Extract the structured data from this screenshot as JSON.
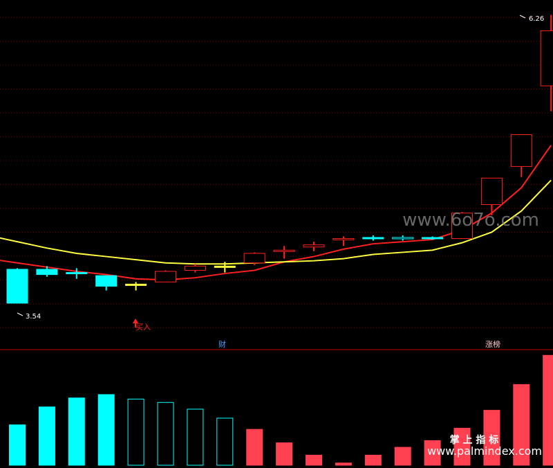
{
  "chart_data": [
    {
      "type": "candlestick",
      "price_range": [
        3.2,
        6.4
      ],
      "high_label": "6.26",
      "low_label": "3.54",
      "buy_label": "买入",
      "candles": [
        {
          "open": 3.86,
          "high": 3.87,
          "low": 3.54,
          "close": 3.54
        },
        {
          "open": 3.86,
          "high": 3.89,
          "low": 3.79,
          "close": 3.81
        },
        {
          "open": 3.83,
          "high": 3.87,
          "low": 3.77,
          "close": 3.82
        },
        {
          "open": 3.8,
          "high": 3.8,
          "low": 3.66,
          "close": 3.7
        },
        {
          "open": 3.72,
          "high": 3.74,
          "low": 3.66,
          "close": 3.72
        },
        {
          "open": 3.74,
          "high": 3.85,
          "low": 3.74,
          "close": 3.84
        },
        {
          "open": 3.85,
          "high": 3.91,
          "low": 3.83,
          "close": 3.89
        },
        {
          "open": 3.89,
          "high": 3.93,
          "low": 3.83,
          "close": 3.89
        },
        {
          "open": 3.92,
          "high": 4.02,
          "low": 3.9,
          "close": 4.01
        },
        {
          "open": 4.03,
          "high": 4.08,
          "low": 3.96,
          "close": 4.04
        },
        {
          "open": 4.07,
          "high": 4.12,
          "low": 4.03,
          "close": 4.09
        },
        {
          "open": 4.14,
          "high": 4.17,
          "low": 4.08,
          "close": 4.15
        },
        {
          "open": 4.16,
          "high": 4.18,
          "low": 4.13,
          "close": 4.16
        },
        {
          "open": 4.15,
          "high": 4.18,
          "low": 4.13,
          "close": 4.16
        },
        {
          "open": 4.16,
          "high": 4.17,
          "low": 4.14,
          "close": 4.16
        },
        {
          "open": 4.15,
          "high": 4.4,
          "low": 4.15,
          "close": 4.39
        },
        {
          "open": 4.47,
          "high": 4.72,
          "low": 4.37,
          "close": 4.72
        },
        {
          "open": 4.83,
          "high": 5.13,
          "low": 4.73,
          "close": 5.13
        },
        {
          "open": 5.59,
          "high": 6.26,
          "low": 5.35,
          "close": 6.11
        }
      ],
      "ma_lines": [
        {
          "color": "#ff2020",
          "values": [
            3.92,
            3.88,
            3.84,
            3.81,
            3.77,
            3.76,
            3.78,
            3.82,
            3.85,
            3.93,
            3.98,
            4.05,
            4.1,
            4.12,
            4.14,
            4.23,
            4.39,
            4.63,
            5.03
          ]
        },
        {
          "color": "#ffff40",
          "values": [
            4.12,
            4.06,
            4.01,
            3.98,
            3.95,
            3.92,
            3.91,
            3.91,
            3.92,
            3.93,
            3.94,
            3.96,
            4.0,
            4.02,
            4.04,
            4.11,
            4.21,
            4.41,
            4.7
          ]
        }
      ]
    },
    {
      "type": "bar",
      "bar_range": [
        0,
        100
      ],
      "bars": [
        {
          "value": 36,
          "color": "#00ffff",
          "filled": true
        },
        {
          "value": 52,
          "color": "#00ffff",
          "filled": true
        },
        {
          "value": 60,
          "color": "#00ffff",
          "filled": true
        },
        {
          "value": 63,
          "color": "#00ffff",
          "filled": true
        },
        {
          "value": 59,
          "color": "#00ffff",
          "filled": false
        },
        {
          "value": 56,
          "color": "#00ffff",
          "filled": false
        },
        {
          "value": 50,
          "color": "#00ffff",
          "filled": false
        },
        {
          "value": 42,
          "color": "#00ffff",
          "filled": false
        },
        {
          "value": 32,
          "color": "#ff4050",
          "filled": true
        },
        {
          "value": 20,
          "color": "#ff4050",
          "filled": true
        },
        {
          "value": 9,
          "color": "#ff4050",
          "filled": true
        },
        {
          "value": 2,
          "color": "#ff4050",
          "filled": true
        },
        {
          "value": 9,
          "color": "#ff4050",
          "filled": true
        },
        {
          "value": 16,
          "color": "#ff4050",
          "filled": true
        },
        {
          "value": 22,
          "color": "#ff4050",
          "filled": true
        },
        {
          "value": 33,
          "color": "#ff4050",
          "filled": true
        },
        {
          "value": 49,
          "color": "#ff4050",
          "filled": true
        },
        {
          "value": 72,
          "color": "#ff4050",
          "filled": true
        },
        {
          "value": 98,
          "color": "#ff4050",
          "filled": true
        }
      ]
    }
  ],
  "indicator_tags": {
    "left": "财",
    "right": "涨榜"
  },
  "watermarks": {
    "top": "www.6o7o.com",
    "bottom_cn": "掌 上 指 标",
    "bottom_url": "www.palmindex.com"
  },
  "colors": {
    "up": "#ff2020",
    "down": "#00ffff",
    "flat": "#ffff40",
    "grid": "#7a0000",
    "divider": "#c00000"
  }
}
